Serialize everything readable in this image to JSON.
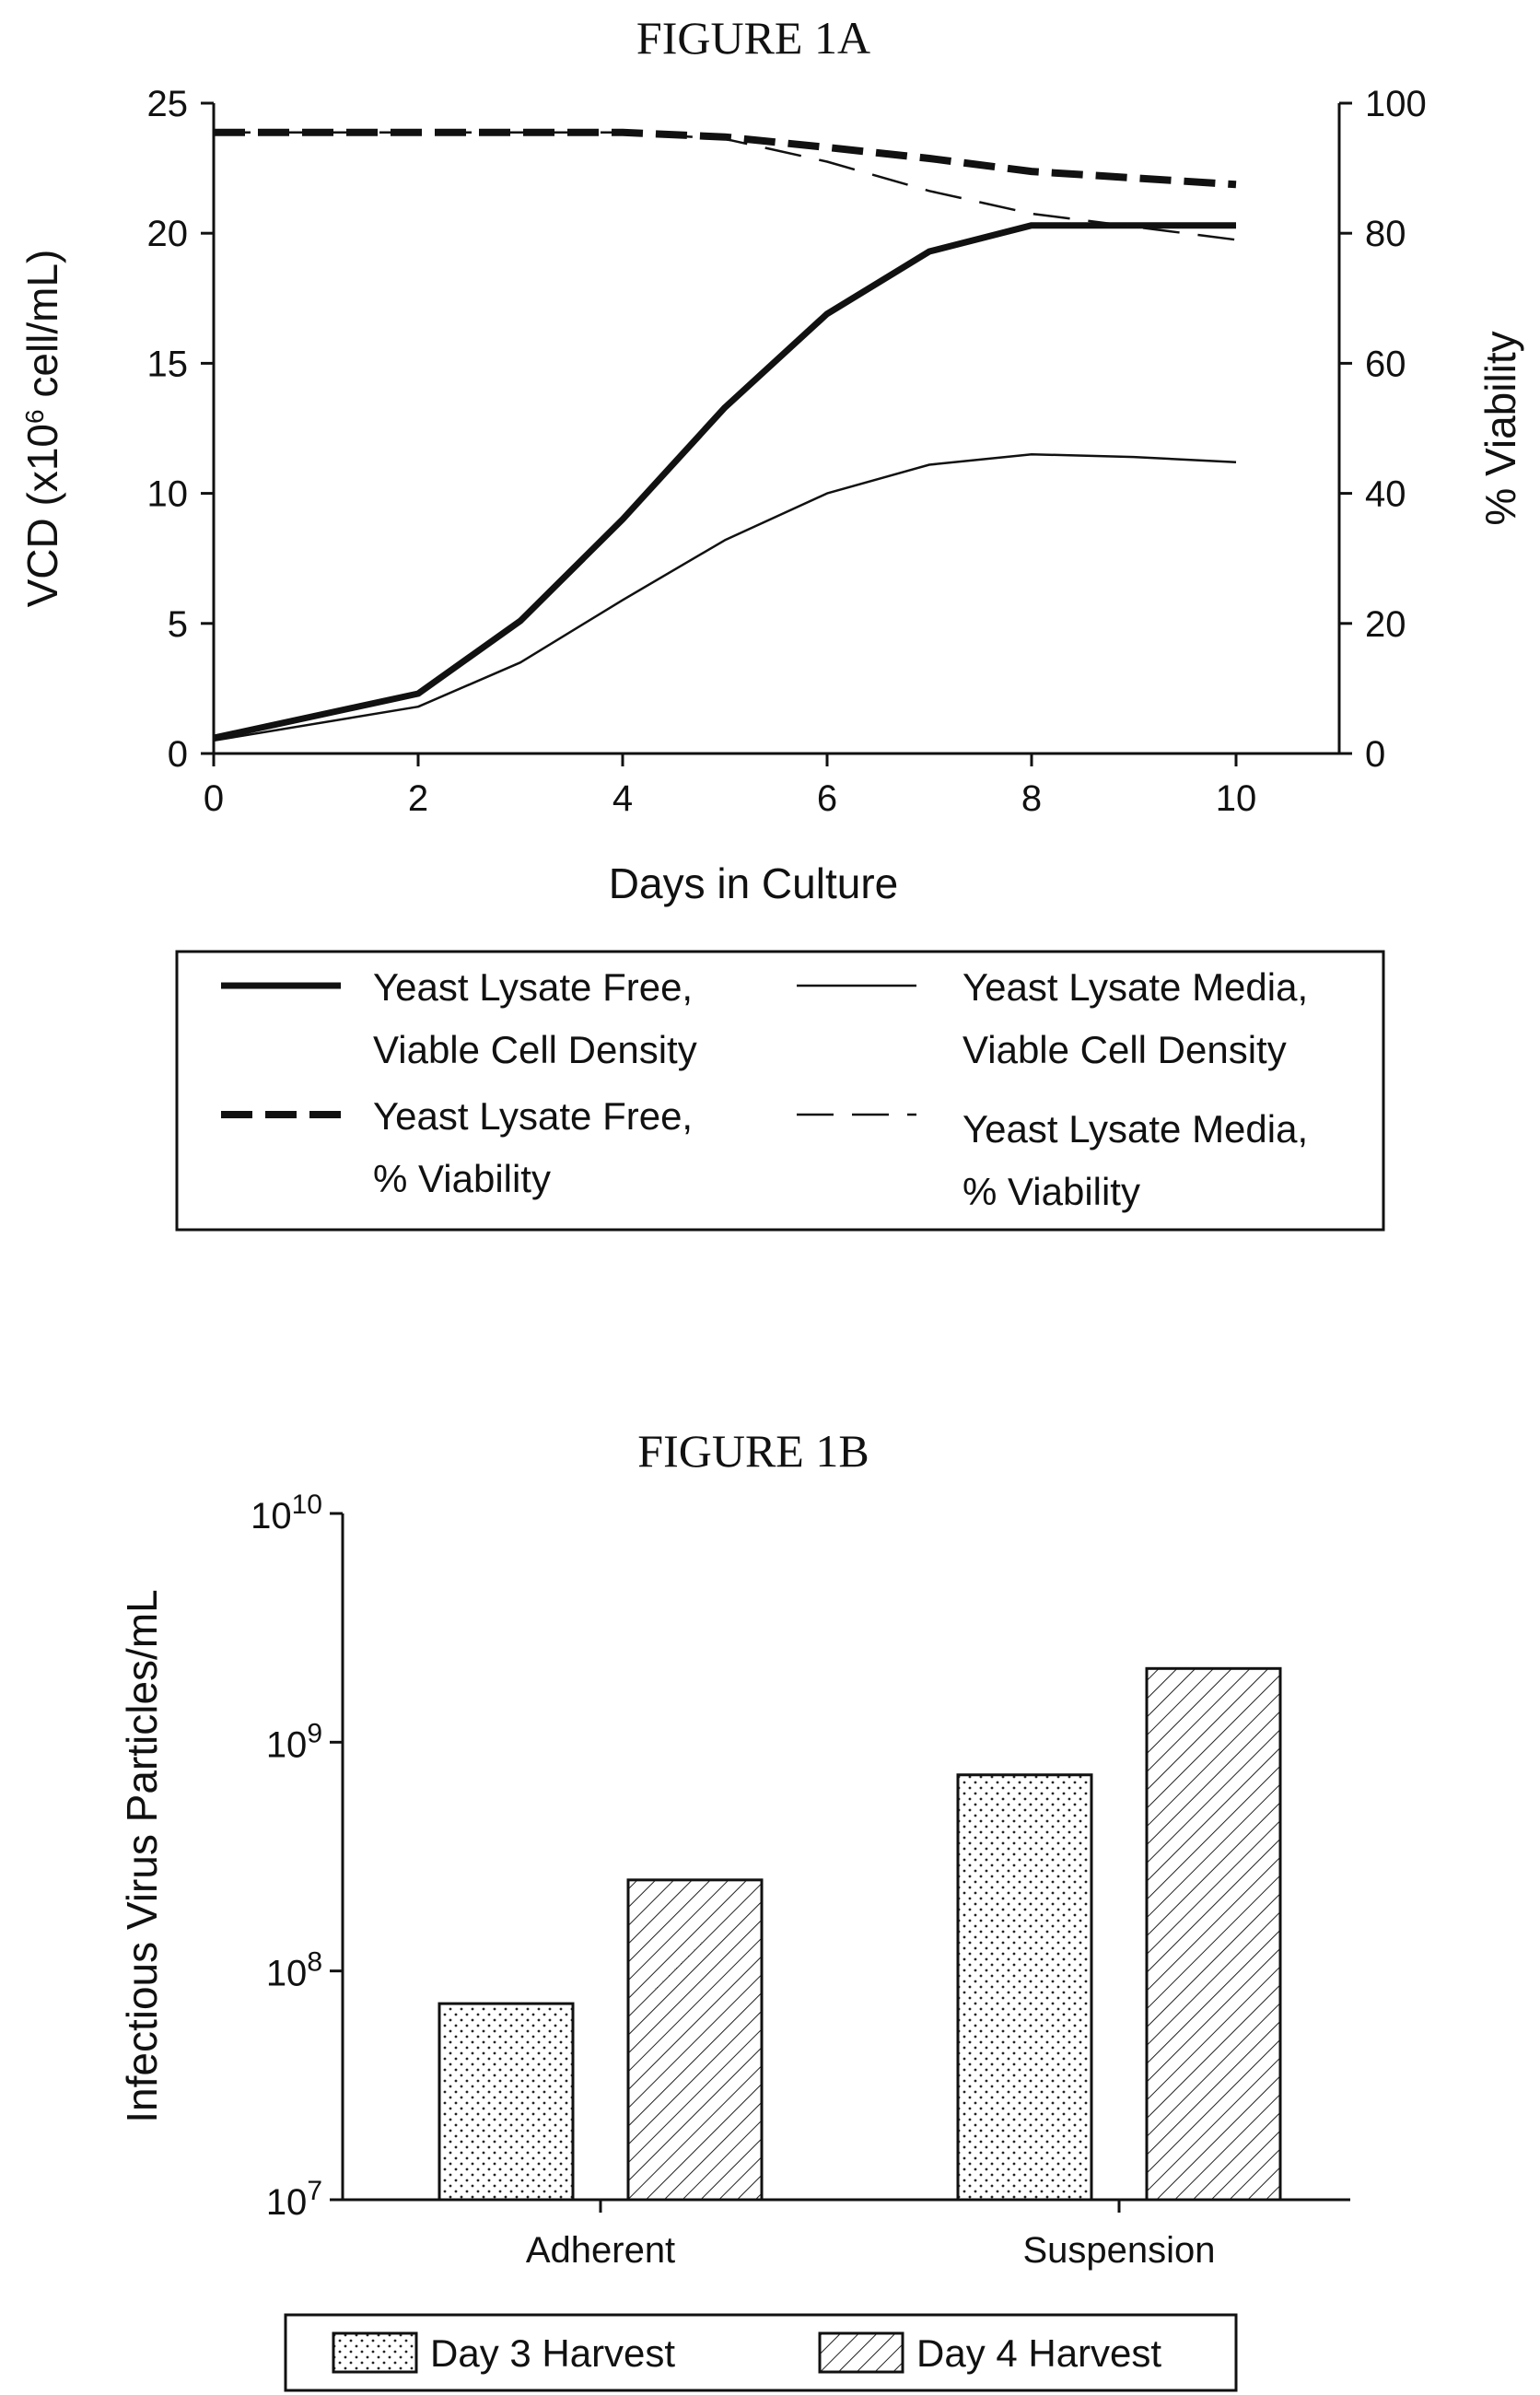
{
  "chart_data": [
    {
      "type": "line",
      "title": "FIGURE 1A",
      "xlabel": "Days in Culture",
      "ylabel": "VCD (x10^6 cell/mL)",
      "ylabel_parts": {
        "pre": "VCD (x10",
        "sup": "6",
        "post": " cell/mL)"
      },
      "y2label": "% Viability",
      "xlim": [
        0,
        11
      ],
      "ylim": [
        0,
        25
      ],
      "y2lim": [
        0,
        100
      ],
      "xticks": [
        "0",
        "2",
        "4",
        "6",
        "8",
        "10"
      ],
      "yticks": [
        "0",
        "5",
        "10",
        "15",
        "20",
        "25"
      ],
      "y2ticks": [
        "0",
        "20",
        "40",
        "60",
        "80",
        "100"
      ],
      "legend_position": "bottom",
      "series": [
        {
          "name": "Yeast Lysate Free, Viable Cell Density",
          "label_lines": [
            "Yeast Lysate Free,",
            "Viable Cell Density"
          ],
          "axis": "left",
          "style": "thick-solid",
          "x": [
            0,
            2,
            3,
            4,
            5,
            6,
            7,
            8,
            9,
            10
          ],
          "y": [
            0.6,
            2.3,
            5.1,
            9.0,
            13.3,
            16.9,
            19.3,
            20.3,
            20.3,
            20.3
          ]
        },
        {
          "name": "Yeast Lysate Media, Viable Cell Density",
          "label_lines": [
            "Yeast Lysate Media,",
            "Viable Cell Density"
          ],
          "axis": "left",
          "style": "thin-solid",
          "x": [
            0,
            2,
            3,
            4,
            5,
            6,
            7,
            8,
            9,
            10
          ],
          "y": [
            0.5,
            1.8,
            3.5,
            5.9,
            8.2,
            10.0,
            11.1,
            11.5,
            11.4,
            11.2
          ]
        },
        {
          "name": "Yeast Lysate Free, % Viability",
          "label_lines": [
            "Yeast Lysate Free,",
            "% Viability"
          ],
          "axis": "right",
          "style": "thick-dashed",
          "x": [
            0,
            2,
            3,
            4,
            5,
            6,
            7,
            8,
            9,
            10
          ],
          "y": [
            95.5,
            95.5,
            95.5,
            95.5,
            94.8,
            93.2,
            91.5,
            89.5,
            88.5,
            87.5
          ]
        },
        {
          "name": "Yeast Lysate Media, % Viability",
          "label_lines": [
            "Yeast Lysate Media,",
            "% Viability"
          ],
          "axis": "right",
          "style": "thin-dashed",
          "x": [
            0,
            2,
            3,
            4,
            5,
            6,
            7,
            8,
            9,
            10
          ],
          "y": [
            95.5,
            95.5,
            95.5,
            95.5,
            94.5,
            91.0,
            86.5,
            83.0,
            81.0,
            79.0
          ]
        }
      ]
    },
    {
      "type": "bar",
      "title": "FIGURE 1B",
      "xlabel": "",
      "ylabel": "Infectious Virus Particles/mL",
      "yscale": "log",
      "ylim": [
        10000000,
        10000000000
      ],
      "yticks": [
        {
          "base": "10",
          "exp": "7"
        },
        {
          "base": "10",
          "exp": "8"
        },
        {
          "base": "10",
          "exp": "9"
        },
        {
          "base": "10",
          "exp": "10"
        }
      ],
      "categories": [
        "Adherent",
        "Suspension"
      ],
      "legend_position": "bottom",
      "series": [
        {
          "name": "Day 3 Harvest",
          "pattern": "dotted",
          "values": [
            72000000,
            720000000
          ]
        },
        {
          "name": "Day 4 Harvest",
          "pattern": "hatched",
          "values": [
            250000000,
            2100000000
          ]
        }
      ]
    }
  ]
}
